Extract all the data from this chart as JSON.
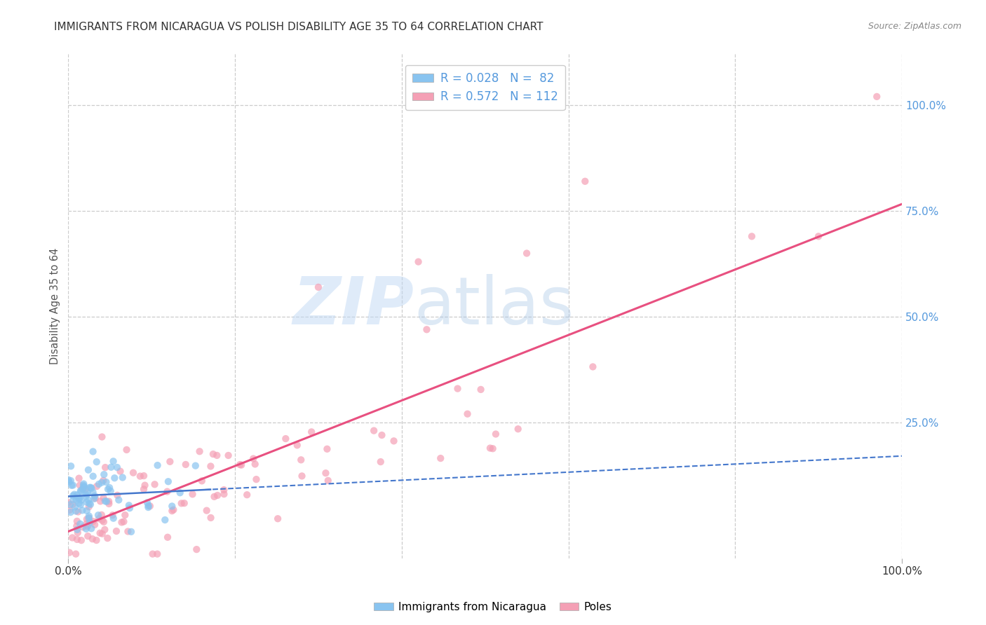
{
  "title": "IMMIGRANTS FROM NICARAGUA VS POLISH DISABILITY AGE 35 TO 64 CORRELATION CHART",
  "source": "Source: ZipAtlas.com",
  "ylabel": "Disability Age 35 to 64",
  "xlim": [
    0,
    1.0
  ],
  "ylim": [
    -0.07,
    1.12
  ],
  "x_tick_labels": [
    "0.0%",
    "100.0%"
  ],
  "x_tick_positions": [
    0.0,
    1.0
  ],
  "y_tick_labels": [
    "25.0%",
    "50.0%",
    "75.0%",
    "100.0%"
  ],
  "y_tick_positions": [
    0.25,
    0.5,
    0.75,
    1.0
  ],
  "r_nicaragua": 0.028,
  "n_nicaragua": 82,
  "r_poles": 0.572,
  "n_poles": 112,
  "color_nicaragua": "#89c4f0",
  "color_poles": "#f4a0b5",
  "color_nicaragua_line": "#4477cc",
  "color_poles_line": "#e85080",
  "legend_label_nicaragua": "Immigrants from Nicaragua",
  "legend_label_poles": "Poles",
  "watermark_zip": "ZIP",
  "watermark_atlas": "atlas",
  "background_color": "#ffffff",
  "grid_color": "#cccccc",
  "title_color": "#333333",
  "axis_label_color": "#555555",
  "tick_label_color_x": "#333333",
  "tick_label_color_y_right_blue": "#4488cc",
  "right_tick_label_color": "#5599dd"
}
